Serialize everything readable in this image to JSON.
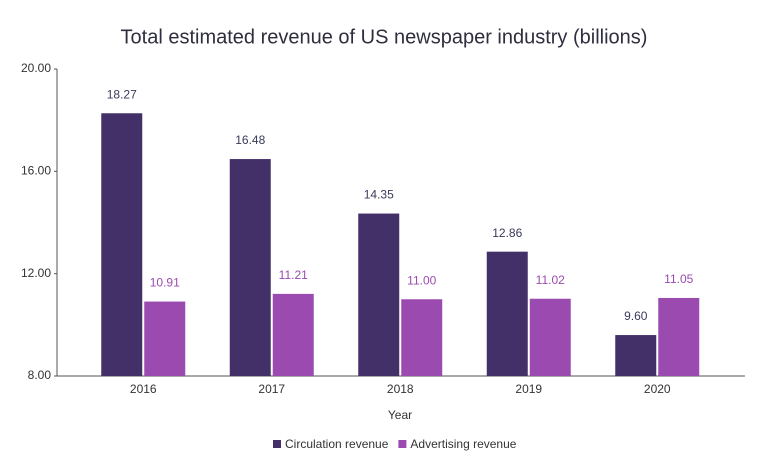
{
  "chart_data": {
    "type": "bar",
    "title": "Total estimated revenue of US newspaper industry (billions)",
    "x_label": "Year",
    "categories": [
      "2016",
      "2017",
      "2018",
      "2019",
      "2020"
    ],
    "series": [
      {
        "name": "Circulation revenue",
        "color": "#433068",
        "label_color": "#3a3a5a",
        "values": [
          18.27,
          16.48,
          14.35,
          12.86,
          9.6
        ],
        "value_labels": [
          "18.27",
          "16.48",
          "14.35",
          "12.86",
          "9.60"
        ]
      },
      {
        "name": "Advertising revenue",
        "color": "#9b4bb0",
        "label_color": "#9b4bb0",
        "values": [
          10.91,
          11.21,
          11.0,
          11.02,
          11.05
        ],
        "value_labels": [
          "10.91",
          "11.21",
          "11.00",
          "11.02",
          "11.05"
        ]
      }
    ],
    "ylim": [
      8,
      20
    ],
    "yticks": [
      {
        "value": 8,
        "label": "8.00"
      },
      {
        "value": 12,
        "label": "12.00"
      },
      {
        "value": 16,
        "label": "16.00"
      },
      {
        "value": 20,
        "label": "20.00"
      }
    ],
    "grid": false
  }
}
